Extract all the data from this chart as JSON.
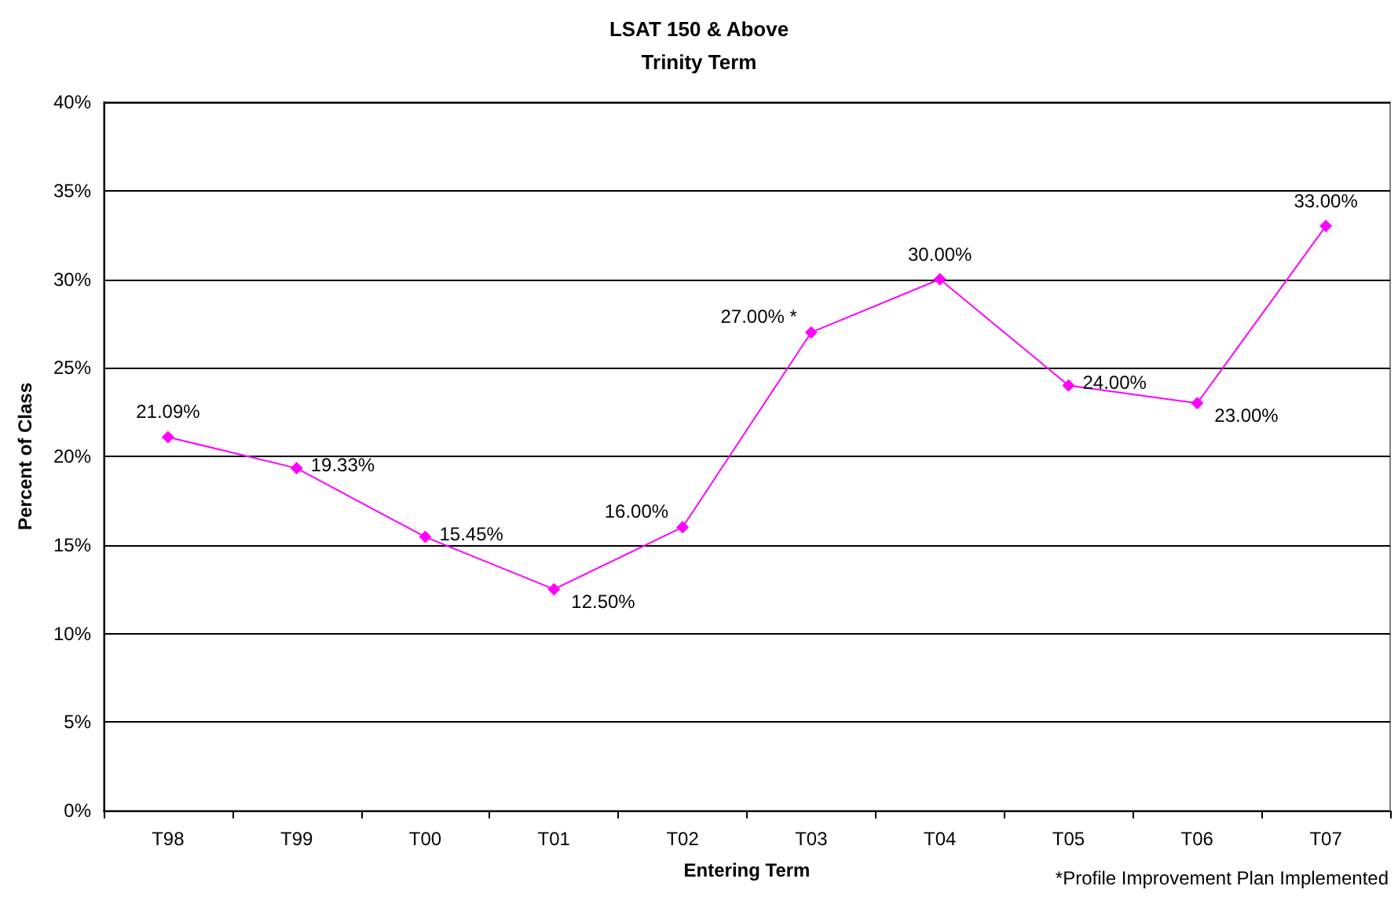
{
  "chart_data": {
    "type": "line",
    "title": "LSAT 150 & Above",
    "subtitle": "Trinity Term",
    "xlabel": "Entering Term",
    "ylabel": "Percent of Class",
    "categories": [
      "T98",
      "T99",
      "T00",
      "T01",
      "T02",
      "T03",
      "T04",
      "T05",
      "T06",
      "T07"
    ],
    "series": [
      {
        "color": "#ff00ff",
        "values": [
          21.09,
          19.33,
          15.45,
          12.5,
          16.0,
          27.0,
          30.0,
          24.0,
          23.0,
          33.0
        ],
        "value_labels": [
          "21.09%",
          "19.33%",
          "15.45%",
          "12.50%",
          "16.00%",
          "27.00% *",
          "30.00%",
          "24.00%",
          "23.00%",
          "33.00%"
        ]
      }
    ],
    "ylim": [
      0,
      40
    ],
    "yticks": [
      {
        "value": 0,
        "label": "0%"
      },
      {
        "value": 5,
        "label": "5%"
      },
      {
        "value": 10,
        "label": "10%"
      },
      {
        "value": 15,
        "label": "15%"
      },
      {
        "value": 20,
        "label": "20%"
      },
      {
        "value": 25,
        "label": "25%"
      },
      {
        "value": 30,
        "label": "30%"
      },
      {
        "value": 35,
        "label": "35%"
      },
      {
        "value": 40,
        "label": "40%"
      }
    ],
    "grid": "y",
    "marker": "diamond",
    "line_style": "solid",
    "annotations": [
      "*Profile Improvement Plan Implemented"
    ]
  }
}
